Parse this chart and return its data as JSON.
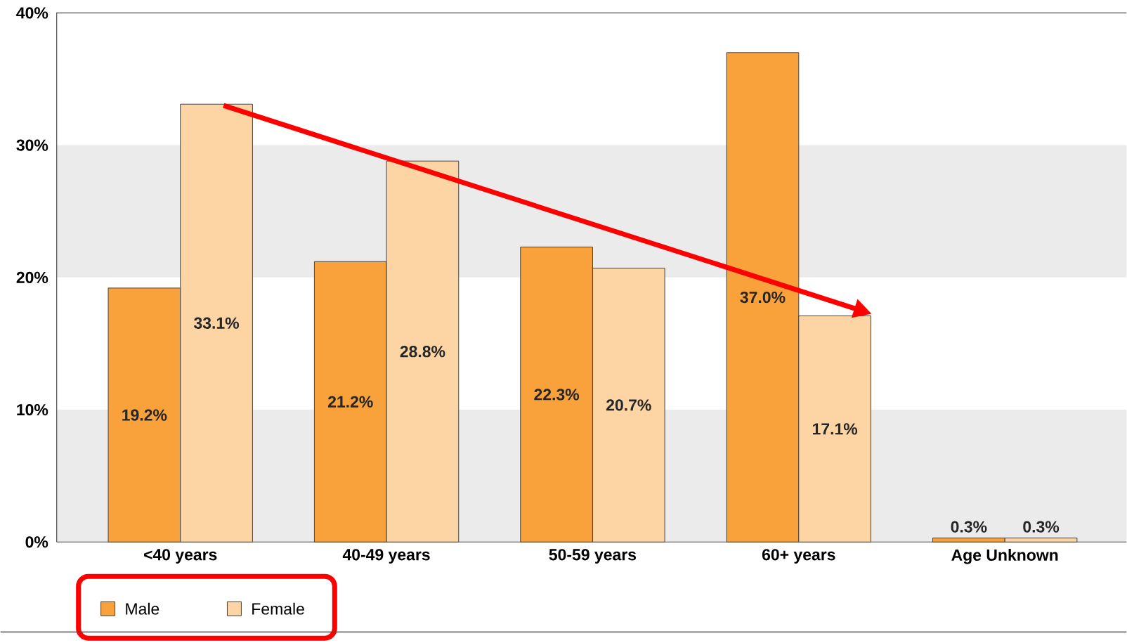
{
  "chart_data": {
    "type": "bar",
    "categories": [
      "<40 years",
      "40-49 years",
      "50-59 years",
      "60+ years",
      "Age Unknown"
    ],
    "series": [
      {
        "name": "Male",
        "color": "#f9a13a",
        "values": [
          19.2,
          21.2,
          22.3,
          37.0,
          0.3
        ],
        "value_labels": [
          "19.2%",
          "21.2%",
          "22.3%",
          "37.0%",
          "0.3%"
        ]
      },
      {
        "name": "Female",
        "color": "#fdd5a5",
        "values": [
          33.1,
          28.8,
          20.7,
          17.1,
          0.3
        ],
        "value_labels": [
          "33.1%",
          "28.8%",
          "20.7%",
          "17.1%",
          "0.3%"
        ]
      }
    ],
    "ylim": [
      0,
      40
    ],
    "yticks": [
      {
        "value": 0,
        "label": "0%"
      },
      {
        "value": 10,
        "label": "10%"
      },
      {
        "value": 20,
        "label": "20%"
      },
      {
        "value": 30,
        "label": "30%"
      },
      {
        "value": 40,
        "label": "40%"
      }
    ],
    "bands": [
      {
        "axis": "y",
        "from": 0,
        "to": 10,
        "color": "#ebebeb"
      },
      {
        "axis": "y",
        "from": 20,
        "to": 30,
        "color": "#ebebeb"
      }
    ],
    "grid": false,
    "legend": "bottom left"
  }
}
